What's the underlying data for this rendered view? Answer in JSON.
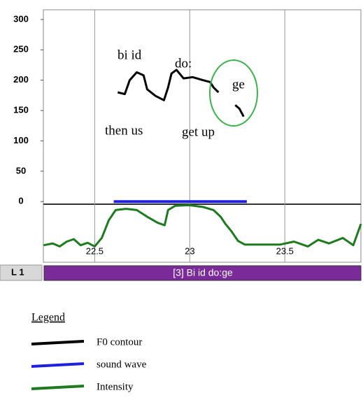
{
  "chart_data": {
    "type": "line",
    "xlim": [
      22.23,
      23.9
    ],
    "xticks": [
      22.5,
      23,
      23.5
    ],
    "ylim": [
      -100,
      316
    ],
    "yticks": [
      0,
      50,
      100,
      150,
      200,
      250,
      300
    ],
    "grid": "x",
    "series": [
      {
        "name": "F0 contour",
        "color": "#000000",
        "x": [
          22.621,
          22.658,
          22.684,
          22.721,
          22.757,
          22.776,
          22.82,
          22.864,
          22.886,
          22.904,
          22.93,
          22.967,
          23.015,
          23.07,
          23.107,
          23.125,
          23.151,
          23.2,
          23.239,
          23.261,
          23.283
        ],
        "values": [
          180,
          177,
          200,
          213,
          208,
          185,
          174,
          167,
          188,
          211,
          217,
          203,
          205,
          200,
          197,
          188,
          180,
          null,
          159,
          153,
          140
        ]
      },
      {
        "name": "sound wave",
        "color": "#1f1fe0",
        "x": [
          22.6,
          22.7,
          22.8,
          22.9,
          23.0,
          23.1,
          23.2,
          23.3
        ],
        "values": [
          0,
          0,
          0,
          0,
          0,
          0,
          0,
          0
        ]
      },
      {
        "name": "Intensity",
        "color": "#1e7a1e",
        "x": [
          22.232,
          22.279,
          22.316,
          22.353,
          22.39,
          22.426,
          22.463,
          22.5,
          22.537,
          22.574,
          22.61,
          22.665,
          22.721,
          22.776,
          22.831,
          22.868,
          22.886,
          22.923,
          22.996,
          23.07,
          23.125,
          23.162,
          23.188,
          23.217,
          23.254,
          23.29,
          23.474,
          23.548,
          23.621,
          23.676,
          23.732,
          23.805,
          23.86,
          23.9
        ],
        "values": [
          -72,
          -69,
          -74,
          -66,
          -62,
          -72,
          -68,
          -74,
          -60,
          -31,
          -14,
          -12,
          -14,
          -25,
          -35,
          -39,
          -14,
          -7,
          -6,
          -9,
          -14,
          -25,
          -37,
          -48,
          -65,
          -71,
          -71,
          -66,
          -74,
          -63,
          -69,
          -60,
          -72,
          -37
        ]
      }
    ],
    "annotations": [
      "bi id",
      "do:",
      "ge",
      "then us",
      "get up"
    ],
    "tier": {
      "label": "L 1",
      "text": "[3] Bi id do:ge"
    },
    "legend_title": "Legend"
  }
}
